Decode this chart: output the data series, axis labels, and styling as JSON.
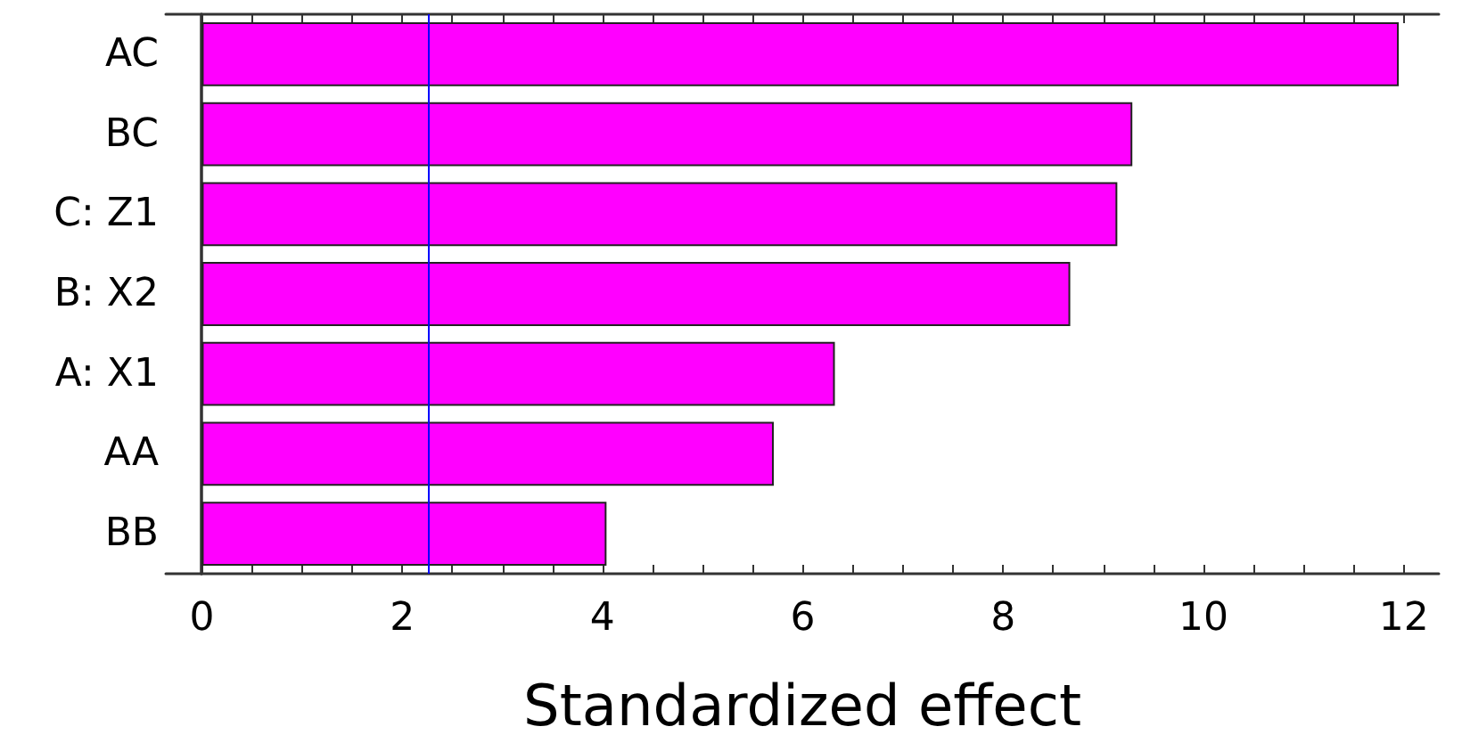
{
  "chart_data": {
    "type": "bar",
    "orientation": "horizontal",
    "xlabel": "Standardized effect",
    "categories": [
      "AC",
      "BC",
      "C: Z1",
      "B: X2",
      "A: X1",
      "AA",
      "BB"
    ],
    "values": [
      11.95,
      9.29,
      9.14,
      8.67,
      6.32,
      5.71,
      4.04
    ],
    "color": "#ff00ff",
    "xlim": [
      -0.36,
      12.35
    ],
    "xticks": [
      0,
      2,
      4,
      6,
      8,
      10,
      12
    ],
    "grid": false,
    "ref_lines": [
      {
        "axis": "x",
        "value": 2.26,
        "color": "#0000ff"
      }
    ]
  }
}
